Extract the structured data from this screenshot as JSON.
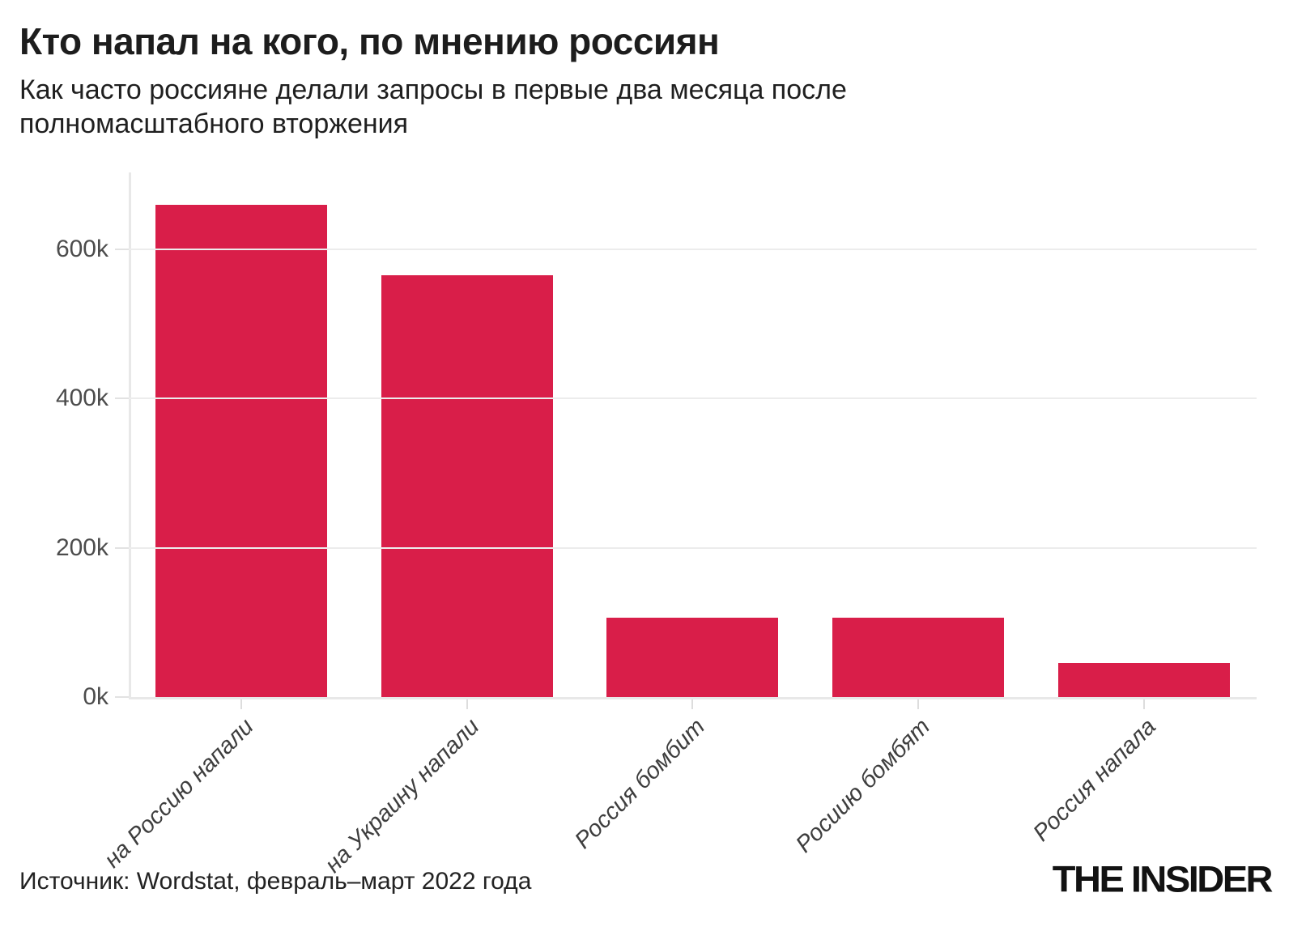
{
  "header": {
    "title": "Кто напал на кого, по мнению россиян",
    "subtitle_line1": "Как часто россияне делали запросы в первые два месяца после",
    "subtitle_line2": "полномасштабного вторжения"
  },
  "chart_data": {
    "type": "bar",
    "title": "Кто напал на кого, по мнению россиян",
    "subtitle": "Как часто россияне делали запросы в первые два месяца после полномасштабного вторжения",
    "categories": [
      "на Россию напали",
      "на Украину напали",
      "Россия бомбит",
      "Росиию бомбят",
      "Россия напала"
    ],
    "values": [
      660000,
      565000,
      106000,
      106000,
      46000
    ],
    "yticks": [
      {
        "value": 0,
        "label": "0k"
      },
      {
        "value": 200000,
        "label": "200k"
      },
      {
        "value": 400000,
        "label": "400k"
      },
      {
        "value": 600000,
        "label": "600k"
      }
    ],
    "ylim": [
      0,
      703000
    ],
    "grid": "horizontal",
    "legend": "none",
    "bar_color": "#D91E49",
    "xlabel": "",
    "ylabel": ""
  },
  "footer": {
    "source": "Источник: Wordstat, февраль–март 2022 года",
    "brand": "THE INSIDER"
  },
  "colors": {
    "background": "#FFFFFF",
    "bar": "#D91E49",
    "gridline": "#ECECEC",
    "axis_line": "#E8E8E8",
    "title_text": "#1D1D1D",
    "y_label_text": "#4C4C4C",
    "x_label_text": "#3E3E3E"
  }
}
